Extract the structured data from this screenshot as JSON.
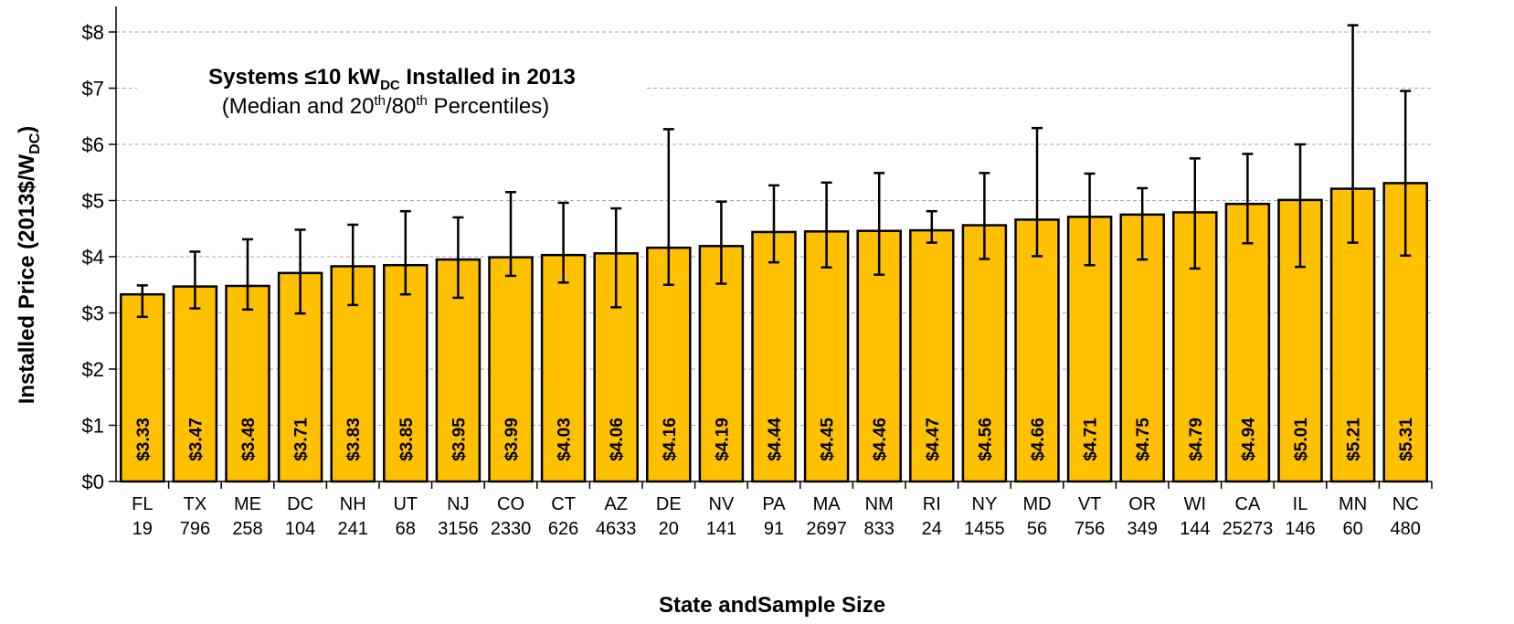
{
  "chart_data": {
    "type": "bar",
    "title_main": "Systems ≤10 kW",
    "title_sub": "DC",
    "title_rest": " Installed in 2013",
    "subtitle_pre": "(Median and 20",
    "subtitle_sup1": "th",
    "subtitle_mid": "/80",
    "subtitle_sup2": "th",
    "subtitle_post": " Percentiles)",
    "ylabel_main": "Installed Price (2013$/W",
    "ylabel_sub": "DC",
    "ylabel_close": ")",
    "xlabel": "State andSample Size",
    "ylim": [
      0,
      8
    ],
    "yticks": [
      0,
      1,
      2,
      3,
      4,
      5,
      6,
      7,
      8
    ],
    "ytick_labels": [
      "$0",
      "$1",
      "$2",
      "$3",
      "$4",
      "$5",
      "$6",
      "$7",
      "$8"
    ],
    "grid": true,
    "bar_color": "#FFC000",
    "categories": [
      "FL",
      "TX",
      "ME",
      "DC",
      "NH",
      "UT",
      "NJ",
      "CO",
      "CT",
      "AZ",
      "DE",
      "NV",
      "PA",
      "MA",
      "NM",
      "RI",
      "NY",
      "MD",
      "VT",
      "OR",
      "WI",
      "CA",
      "IL",
      "MN",
      "NC"
    ],
    "sample_sizes": [
      "19",
      "796",
      "258",
      "104",
      "241",
      "68",
      "3156",
      "2330",
      "626",
      "4633",
      "20",
      "141",
      "91",
      "2697",
      "833",
      "24",
      "1455",
      "56",
      "756",
      "349",
      "144",
      "25273",
      "146",
      "60",
      "480"
    ],
    "values": [
      3.33,
      3.47,
      3.48,
      3.71,
      3.83,
      3.85,
      3.95,
      3.99,
      4.03,
      4.06,
      4.16,
      4.19,
      4.44,
      4.45,
      4.46,
      4.47,
      4.56,
      4.66,
      4.71,
      4.75,
      4.79,
      4.94,
      5.01,
      5.21,
      5.31
    ],
    "value_labels": [
      "$3.33",
      "$3.47",
      "$3.48",
      "$3.71",
      "$3.83",
      "$3.85",
      "$3.95",
      "$3.99",
      "$4.03",
      "$4.06",
      "$4.16",
      "$4.19",
      "$4.44",
      "$4.45",
      "$4.46",
      "$4.47",
      "$4.56",
      "$4.66",
      "$4.71",
      "$4.75",
      "$4.79",
      "$4.94",
      "$5.01",
      "$5.21",
      "$5.31"
    ],
    "p20": [
      2.93,
      3.08,
      3.06,
      2.99,
      3.14,
      3.33,
      3.27,
      3.66,
      3.54,
      3.1,
      3.5,
      3.52,
      3.9,
      3.81,
      3.68,
      4.25,
      3.96,
      4.01,
      3.85,
      3.95,
      3.79,
      4.24,
      3.82,
      4.25,
      4.02
    ],
    "p80": [
      3.49,
      4.09,
      4.31,
      4.48,
      4.57,
      4.81,
      4.7,
      5.15,
      4.96,
      4.86,
      6.27,
      4.98,
      5.27,
      5.32,
      5.49,
      4.81,
      5.49,
      6.29,
      5.48,
      5.22,
      5.75,
      5.83,
      6.0,
      8.12,
      6.95
    ]
  }
}
